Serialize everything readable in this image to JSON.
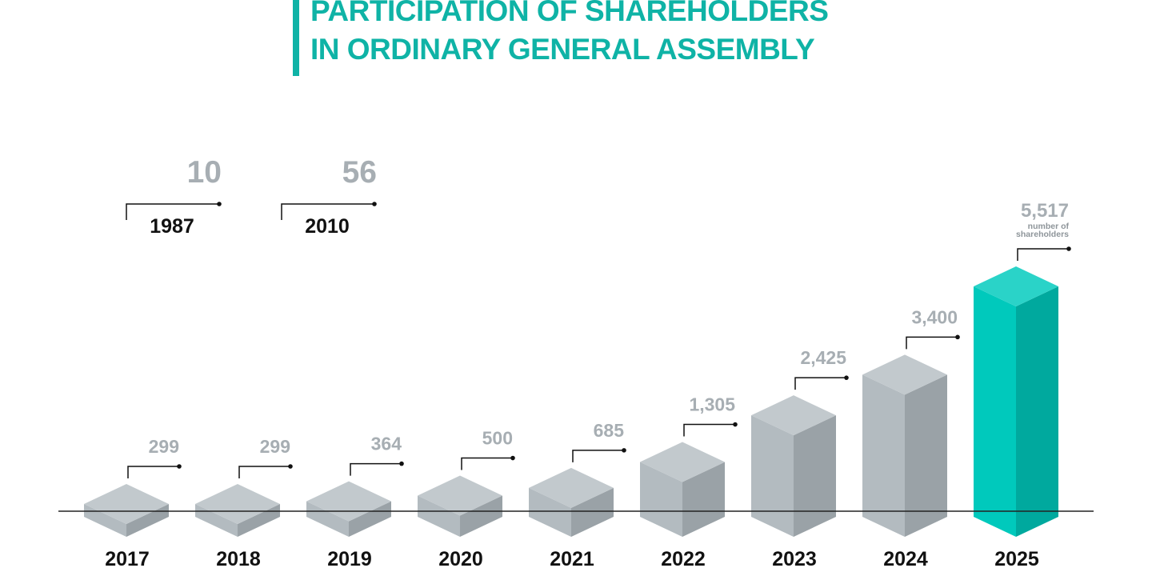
{
  "title": {
    "line1": "PARTICIPATION OF SHAREHOLDERS",
    "line2": "IN ORDINARY GENERAL ASSEMBLY"
  },
  "colors": {
    "accent": "#0fb3a6",
    "bar_front": "#b3bbc0",
    "bar_side": "#9aa2a7",
    "bar_top": "#c2c9cd",
    "accent_front": "#00c9bc",
    "accent_side": "#00a99e",
    "accent_top": "#2ad3c8",
    "value_text": "#a7aeb3",
    "year_text": "#111111",
    "axis": "#222222"
  },
  "chart_data": {
    "type": "bar",
    "title": "PARTICIPATION OF SHAREHOLDERS IN ORDINARY GENERAL ASSEMBLY",
    "xlabel": "",
    "ylabel": "number of shareholders",
    "grid": false,
    "historical": [
      {
        "year": "1987",
        "value": 10,
        "label": "10"
      },
      {
        "year": "2010",
        "value": 56,
        "label": "56"
      }
    ],
    "categories": [
      "2017",
      "2018",
      "2019",
      "2020",
      "2021",
      "2022",
      "2023",
      "2024",
      "2025"
    ],
    "values": [
      299,
      299,
      364,
      500,
      685,
      1305,
      2425,
      3400,
      5517
    ],
    "value_labels": [
      "299",
      "299",
      "364",
      "500",
      "685",
      "1,305",
      "2,425",
      "3,400",
      "5,517"
    ],
    "highlight_index": 8,
    "highlight_note": [
      "number of",
      "shareholders"
    ]
  }
}
